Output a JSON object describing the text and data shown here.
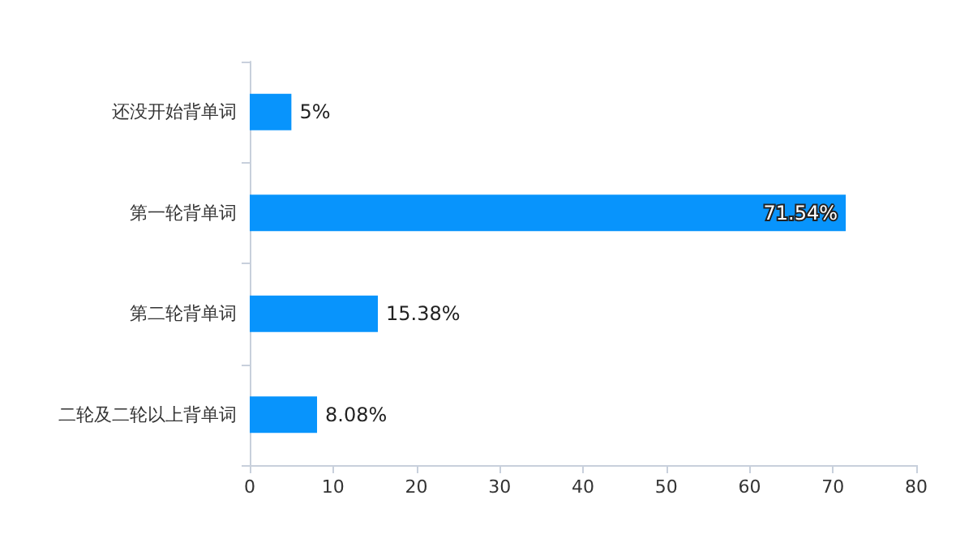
{
  "chart_data": {
    "type": "bar",
    "orientation": "horizontal",
    "categories": [
      "还没开始背单词",
      "第一轮背单词",
      "第二轮背单词",
      "二轮及二轮以上背单词"
    ],
    "values": [
      5,
      71.54,
      15.38,
      8.08
    ],
    "value_labels": [
      "5%",
      "71.54%",
      "15.38%",
      "8.08%"
    ],
    "color": "#0894fc",
    "xlim": [
      0,
      80
    ],
    "xticks": [
      0,
      10,
      20,
      30,
      40,
      50,
      60,
      70,
      80
    ]
  }
}
